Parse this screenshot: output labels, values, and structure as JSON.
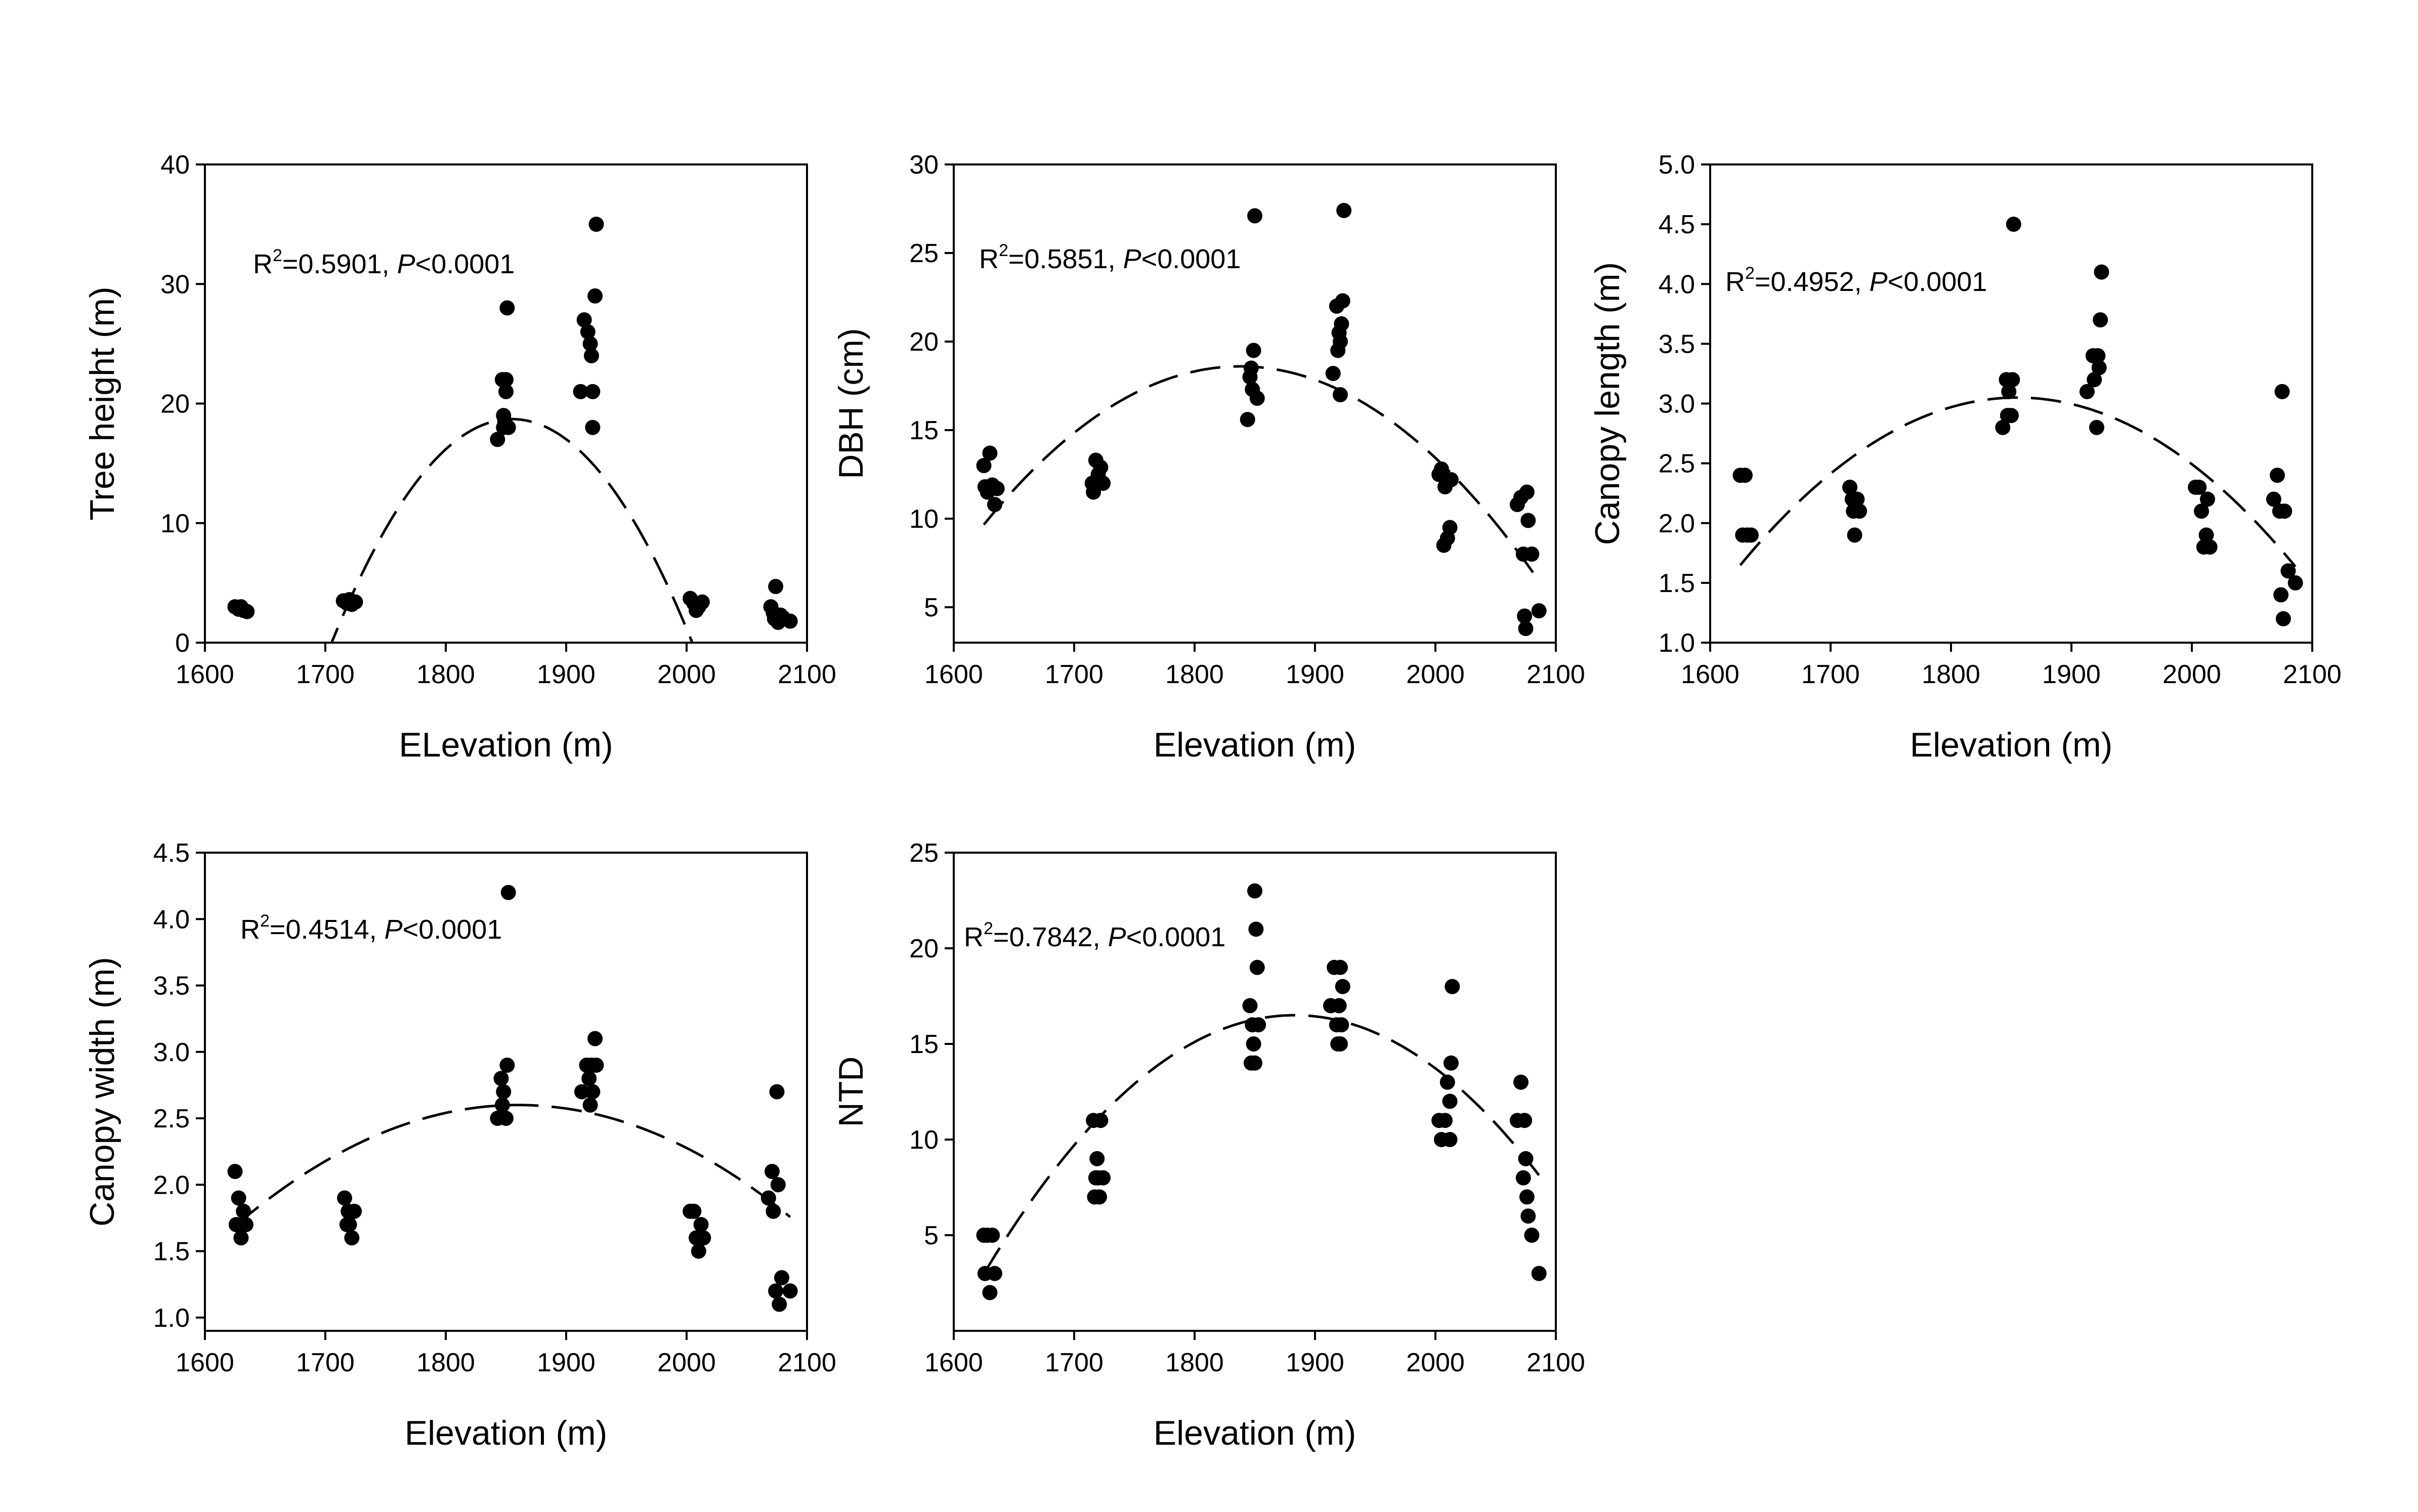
{
  "chart_data": [
    {
      "type": "scatter",
      "xlabel": "ELevation (m)",
      "ylabel": "Tree height (m)",
      "xlim": [
        1600,
        2100
      ],
      "ylim": [
        0,
        40
      ],
      "xticks": [
        1600,
        1700,
        1800,
        1900,
        2000,
        2100
      ],
      "yticks": [
        0,
        10,
        20,
        30,
        40
      ],
      "annotation": {
        "r_prefix": "R",
        "r_sup": "2",
        "r_value": "=0.5901, ",
        "p_label": "P",
        "p_value": "<0.0001"
      },
      "fit": {
        "type": "quadratic-dashed",
        "vertex_x": 1855,
        "vertex_y": 18.7,
        "a": -0.000834
      },
      "points": [
        [
          1625,
          3.0
        ],
        [
          1628,
          2.8
        ],
        [
          1630,
          3.0
        ],
        [
          1632,
          2.7
        ],
        [
          1635,
          2.6
        ],
        [
          1715,
          3.5
        ],
        [
          1718,
          3.3
        ],
        [
          1720,
          3.6
        ],
        [
          1722,
          3.2
        ],
        [
          1725,
          3.4
        ],
        [
          1843,
          17
        ],
        [
          1847,
          22
        ],
        [
          1848,
          19
        ],
        [
          1848,
          18
        ],
        [
          1849,
          18.5
        ],
        [
          1850,
          22
        ],
        [
          1850,
          21
        ],
        [
          1851,
          28
        ],
        [
          1852,
          18
        ],
        [
          1912,
          21
        ],
        [
          1915,
          27
        ],
        [
          1918,
          26
        ],
        [
          1920,
          25
        ],
        [
          1921,
          24
        ],
        [
          1922,
          21
        ],
        [
          1922,
          18
        ],
        [
          1924,
          29
        ],
        [
          1925,
          35
        ],
        [
          2003,
          3.7
        ],
        [
          2006,
          3.3
        ],
        [
          2008,
          2.7
        ],
        [
          2010,
          3.0
        ],
        [
          2013,
          3.4
        ],
        [
          2070,
          3.0
        ],
        [
          2072,
          2.5
        ],
        [
          2073,
          2.0
        ],
        [
          2074,
          4.7
        ],
        [
          2076,
          1.7
        ],
        [
          2078,
          2.3
        ],
        [
          2080,
          2.1
        ],
        [
          2086,
          1.8
        ]
      ]
    },
    {
      "type": "scatter",
      "xlabel": "Elevation (m)",
      "ylabel": "DBH (cm)",
      "xlim": [
        1600,
        2100
      ],
      "ylim": [
        3,
        30
      ],
      "xticks": [
        1600,
        1700,
        1800,
        1900,
        2000,
        2100
      ],
      "yticks": [
        5,
        10,
        15,
        20,
        25,
        30
      ],
      "annotation": {
        "r_prefix": "R",
        "r_sup": "2",
        "r_value": "=0.5851, ",
        "p_label": "P",
        "p_value": "<0.0001"
      },
      "fit": {
        "type": "quadratic-dashed",
        "vertex_x": 1838,
        "vertex_y": 18.6,
        "a": -0.000197
      },
      "points": [
        [
          1625,
          13.0
        ],
        [
          1626,
          11.8
        ],
        [
          1628,
          11.5
        ],
        [
          1630,
          13.7
        ],
        [
          1632,
          11.9
        ],
        [
          1634,
          10.8
        ],
        [
          1636,
          11.7
        ],
        [
          1715,
          12.0
        ],
        [
          1716,
          11.5
        ],
        [
          1718,
          13.3
        ],
        [
          1720,
          12.5
        ],
        [
          1722,
          12.9
        ],
        [
          1724,
          12.0
        ],
        [
          1844,
          15.6
        ],
        [
          1846,
          18.0
        ],
        [
          1847,
          18.5
        ],
        [
          1848,
          17.3
        ],
        [
          1849,
          19.5
        ],
        [
          1850,
          27.1
        ],
        [
          1852,
          16.8
        ],
        [
          1915,
          18.2
        ],
        [
          1918,
          22
        ],
        [
          1919,
          19.5
        ],
        [
          1920,
          20.5
        ],
        [
          1921,
          20
        ],
        [
          1921,
          17
        ],
        [
          1922,
          21
        ],
        [
          1923,
          22.3
        ],
        [
          1924,
          27.4
        ],
        [
          2003,
          12.5
        ],
        [
          2005,
          12.8
        ],
        [
          2007,
          8.5
        ],
        [
          2008,
          11.8
        ],
        [
          2010,
          8.9
        ],
        [
          2012,
          9.5
        ],
        [
          2013,
          12.2
        ],
        [
          2068,
          10.8
        ],
        [
          2071,
          11.2
        ],
        [
          2073,
          8.0
        ],
        [
          2074,
          4.5
        ],
        [
          2075,
          3.8
        ],
        [
          2076,
          11.5
        ],
        [
          2077,
          9.9
        ],
        [
          2080,
          8.0
        ],
        [
          2086,
          4.8
        ]
      ]
    },
    {
      "type": "scatter",
      "xlabel": "Elevation (m)",
      "ylabel": "Canopy length (m)",
      "xlim": [
        1600,
        2100
      ],
      "ylim": [
        1.0,
        5.0
      ],
      "xticks": [
        1600,
        1700,
        1800,
        1900,
        2000,
        2100
      ],
      "yticks": [
        1.0,
        1.5,
        2.0,
        2.5,
        3.0,
        3.5,
        4.0,
        4.5,
        5.0
      ],
      "annotation": {
        "r_prefix": "R",
        "r_sup": "2",
        "r_value": "=0.4952, ",
        "p_label": "P",
        "p_value": "<0.0001"
      },
      "fit": {
        "type": "quadratic-dashed",
        "vertex_x": 1855,
        "vertex_y": 3.05,
        "a": -2.65e-05
      },
      "points": [
        [
          1625,
          2.4
        ],
        [
          1627,
          1.9
        ],
        [
          1629,
          2.4
        ],
        [
          1631,
          1.9
        ],
        [
          1634,
          1.9
        ],
        [
          1716,
          2.3
        ],
        [
          1718,
          2.2
        ],
        [
          1719,
          2.1
        ],
        [
          1720,
          1.9
        ],
        [
          1722,
          2.2
        ],
        [
          1724,
          2.1
        ],
        [
          1843,
          2.8
        ],
        [
          1846,
          3.2
        ],
        [
          1847,
          2.9
        ],
        [
          1848,
          3.1
        ],
        [
          1850,
          2.9
        ],
        [
          1851,
          3.2
        ],
        [
          1852,
          4.5
        ],
        [
          1913,
          3.1
        ],
        [
          1918,
          3.4
        ],
        [
          1919,
          3.2
        ],
        [
          1921,
          2.8
        ],
        [
          1922,
          3.4
        ],
        [
          1923,
          3.3
        ],
        [
          1924,
          3.7
        ],
        [
          1925,
          4.1
        ],
        [
          2003,
          2.3
        ],
        [
          2006,
          2.3
        ],
        [
          2008,
          2.1
        ],
        [
          2010,
          1.8
        ],
        [
          2012,
          1.9
        ],
        [
          2013,
          2.2
        ],
        [
          2015,
          1.8
        ],
        [
          2068,
          2.2
        ],
        [
          2071,
          2.4
        ],
        [
          2073,
          2.1
        ],
        [
          2074,
          1.4
        ],
        [
          2075,
          3.1
        ],
        [
          2076,
          1.2
        ],
        [
          2077,
          2.1
        ],
        [
          2080,
          1.6
        ],
        [
          2086,
          1.5
        ]
      ]
    },
    {
      "type": "scatter",
      "xlabel": "Elevation (m)",
      "ylabel": "Canopy width (m)",
      "xlim": [
        1600,
        2100
      ],
      "ylim": [
        0.9,
        4.5
      ],
      "xticks": [
        1600,
        1700,
        1800,
        1900,
        2000,
        2100
      ],
      "yticks": [
        1.0,
        1.5,
        2.0,
        2.5,
        3.0,
        3.5,
        4.0,
        4.5
      ],
      "annotation": {
        "r_prefix": "R",
        "r_sup": "2",
        "r_value": "=0.4514, ",
        "p_label": "P",
        "p_value": "<0.0001"
      },
      "fit": {
        "type": "quadratic-dashed",
        "vertex_x": 1860,
        "vertex_y": 2.6,
        "a": -1.65e-05
      },
      "points": [
        [
          1625,
          2.1
        ],
        [
          1626,
          1.7
        ],
        [
          1628,
          1.9
        ],
        [
          1630,
          1.6
        ],
        [
          1632,
          1.8
        ],
        [
          1634,
          1.7
        ],
        [
          1716,
          1.9
        ],
        [
          1718,
          1.7
        ],
        [
          1719,
          1.8
        ],
        [
          1720,
          1.7
        ],
        [
          1722,
          1.6
        ],
        [
          1724,
          1.8
        ],
        [
          1843,
          2.5
        ],
        [
          1846,
          2.8
        ],
        [
          1847,
          2.6
        ],
        [
          1848,
          2.7
        ],
        [
          1850,
          2.5
        ],
        [
          1851,
          2.9
        ],
        [
          1852,
          4.2
        ],
        [
          1913,
          2.7
        ],
        [
          1917,
          2.9
        ],
        [
          1919,
          2.8
        ],
        [
          1920,
          2.6
        ],
        [
          1921,
          2.9
        ],
        [
          1922,
          2.7
        ],
        [
          1924,
          3.1
        ],
        [
          1925,
          2.9
        ],
        [
          2003,
          1.8
        ],
        [
          2006,
          1.8
        ],
        [
          2008,
          1.6
        ],
        [
          2010,
          1.5
        ],
        [
          2012,
          1.7
        ],
        [
          2014,
          1.6
        ],
        [
          2068,
          1.9
        ],
        [
          2071,
          2.1
        ],
        [
          2072,
          1.8
        ],
        [
          2074,
          1.2
        ],
        [
          2075,
          2.7
        ],
        [
          2076,
          2.0
        ],
        [
          2077,
          1.1
        ],
        [
          2079,
          1.3
        ],
        [
          2086,
          1.2
        ]
      ]
    },
    {
      "type": "scatter",
      "xlabel": "Elevation (m)",
      "ylabel": "NTD",
      "xlim": [
        1600,
        2100
      ],
      "ylim": [
        0,
        25
      ],
      "xticks": [
        1600,
        1700,
        1800,
        1900,
        2000,
        2100
      ],
      "yticks": [
        5,
        10,
        15,
        20,
        25
      ],
      "annotation": {
        "r_prefix": "R",
        "r_sup": "2",
        "r_value": "=0.7842, ",
        "p_label": "P",
        "p_value": "<0.0001"
      },
      "fit": {
        "type": "quadratic-dashed",
        "vertex_x": 1883,
        "vertex_y": 16.5,
        "a": -0.000203
      },
      "points": [
        [
          1625,
          5
        ],
        [
          1626,
          3
        ],
        [
          1628,
          5
        ],
        [
          1630,
          2
        ],
        [
          1632,
          5
        ],
        [
          1634,
          3
        ],
        [
          1716,
          11
        ],
        [
          1717,
          7
        ],
        [
          1718,
          8
        ],
        [
          1719,
          9
        ],
        [
          1720,
          8
        ],
        [
          1721,
          7
        ],
        [
          1722,
          11
        ],
        [
          1724,
          8
        ],
        [
          1846,
          17
        ],
        [
          1847,
          14
        ],
        [
          1848,
          16
        ],
        [
          1849,
          15
        ],
        [
          1850,
          23
        ],
        [
          1851,
          21
        ],
        [
          1852,
          19
        ],
        [
          1853,
          16
        ],
        [
          1850,
          14
        ],
        [
          1913,
          17
        ],
        [
          1916,
          19
        ],
        [
          1918,
          16
        ],
        [
          1919,
          15
        ],
        [
          1920,
          17
        ],
        [
          1921,
          19
        ],
        [
          1922,
          16
        ],
        [
          1923,
          18
        ],
        [
          1921,
          15
        ],
        [
          2003,
          11
        ],
        [
          2005,
          10
        ],
        [
          2008,
          11
        ],
        [
          2010,
          13
        ],
        [
          2012,
          12
        ],
        [
          2013,
          14
        ],
        [
          2014,
          18
        ],
        [
          2012,
          10
        ],
        [
          2068,
          11
        ],
        [
          2071,
          13
        ],
        [
          2073,
          8
        ],
        [
          2074,
          11
        ],
        [
          2075,
          9
        ],
        [
          2076,
          7
        ],
        [
          2077,
          6
        ],
        [
          2080,
          5
        ],
        [
          2086,
          3
        ]
      ]
    }
  ]
}
